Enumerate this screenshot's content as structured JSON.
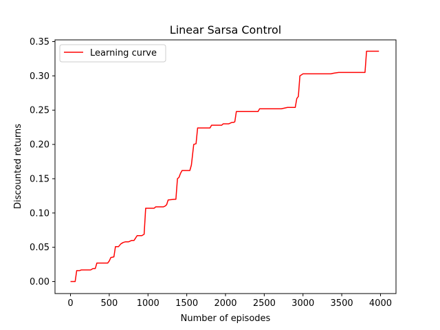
{
  "chart_data": {
    "type": "line",
    "title": "Linear Sarsa Control",
    "xlabel": "Number of episodes",
    "ylabel": "Discounted returns",
    "xlim": [
      -200,
      4200
    ],
    "ylim": [
      -0.0175,
      0.3525
    ],
    "xticks": [
      0,
      500,
      1000,
      1500,
      2000,
      2500,
      3000,
      3500,
      4000
    ],
    "yticks": [
      0.0,
      0.05,
      0.1,
      0.15,
      0.2,
      0.25,
      0.3,
      0.35
    ],
    "xtick_labels": [
      "0",
      "500",
      "1000",
      "1500",
      "2000",
      "2500",
      "3000",
      "3500",
      "4000"
    ],
    "ytick_labels": [
      "0.00",
      "0.05",
      "0.10",
      "0.15",
      "0.20",
      "0.25",
      "0.30",
      "0.35"
    ],
    "grid": false,
    "legend_position": "upper-left",
    "series": [
      {
        "name": "Learning curve",
        "color": "#ff0000",
        "x": [
          0,
          60,
          80,
          120,
          140,
          260,
          290,
          320,
          340,
          480,
          500,
          520,
          560,
          580,
          620,
          650,
          680,
          710,
          750,
          790,
          820,
          860,
          920,
          950,
          970,
          1080,
          1100,
          1200,
          1220,
          1240,
          1260,
          1340,
          1360,
          1380,
          1400,
          1420,
          1440,
          1540,
          1560,
          1590,
          1620,
          1640,
          1670,
          1800,
          1820,
          1950,
          1970,
          2040,
          2060,
          2080,
          2100,
          2120,
          2140,
          2420,
          2440,
          2720,
          2760,
          2800,
          2900,
          2920,
          2940,
          2960,
          3000,
          3360,
          3400,
          3460,
          3800,
          3820,
          3980
        ],
        "y": [
          0.0,
          0.0,
          0.016,
          0.016,
          0.017,
          0.017,
          0.019,
          0.019,
          0.027,
          0.027,
          0.03,
          0.035,
          0.036,
          0.051,
          0.051,
          0.055,
          0.057,
          0.058,
          0.058,
          0.06,
          0.06,
          0.067,
          0.067,
          0.069,
          0.107,
          0.107,
          0.109,
          0.109,
          0.11,
          0.112,
          0.119,
          0.12,
          0.12,
          0.15,
          0.152,
          0.158,
          0.162,
          0.162,
          0.17,
          0.2,
          0.201,
          0.224,
          0.224,
          0.224,
          0.228,
          0.228,
          0.23,
          0.23,
          0.231,
          0.232,
          0.232,
          0.233,
          0.248,
          0.248,
          0.252,
          0.252,
          0.253,
          0.254,
          0.254,
          0.267,
          0.27,
          0.3,
          0.303,
          0.303,
          0.304,
          0.305,
          0.305,
          0.336,
          0.336
        ]
      }
    ]
  }
}
